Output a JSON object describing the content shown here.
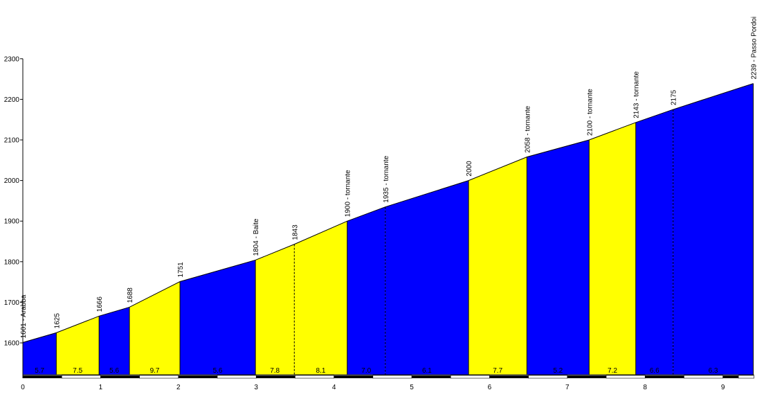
{
  "chart_data": {
    "type": "area",
    "title": "",
    "xlabel": "",
    "ylabel": "",
    "xlim": [
      0,
      9.4
    ],
    "ylim": [
      1515,
      2300
    ],
    "x_ticks": [
      0,
      1,
      2,
      3,
      4,
      5,
      6,
      7,
      8,
      9
    ],
    "y_ticks": [
      1600,
      1700,
      1800,
      1900,
      2000,
      2100,
      2200,
      2300
    ],
    "segment_colors": [
      "#0000ff",
      "#ffff00"
    ],
    "profile": [
      {
        "x": 0.0,
        "elev": 1601,
        "label": "1601 - Arabba"
      },
      {
        "x": 0.43,
        "elev": 1625,
        "label": "1625"
      },
      {
        "x": 0.98,
        "elev": 1666,
        "label": "1666"
      },
      {
        "x": 1.37,
        "elev": 1688,
        "label": "1688"
      },
      {
        "x": 2.02,
        "elev": 1751,
        "label": "1751"
      },
      {
        "x": 2.99,
        "elev": 1804,
        "label": "1804 - Baite"
      },
      {
        "x": 3.49,
        "elev": 1843,
        "label": "1843"
      },
      {
        "x": 4.17,
        "elev": 1900,
        "label": "1900 - tornante"
      },
      {
        "x": 4.66,
        "elev": 1935,
        "label": "1935 - tornante"
      },
      {
        "x": 5.73,
        "elev": 2000,
        "label": "2000"
      },
      {
        "x": 6.48,
        "elev": 2058,
        "label": "2058 - tornante"
      },
      {
        "x": 7.28,
        "elev": 2100,
        "label": "2100 - tornante"
      },
      {
        "x": 7.88,
        "elev": 2143,
        "label": "2143 - tornante"
      },
      {
        "x": 8.36,
        "elev": 2175,
        "label": "2175"
      },
      {
        "x": 9.39,
        "elev": 2239,
        "label": "2239 - Passo Pordoi"
      }
    ],
    "segments": [
      {
        "start": 0.0,
        "end": 0.43,
        "color": "#0000ff",
        "gradient": "5.7"
      },
      {
        "start": 0.43,
        "end": 0.98,
        "color": "#ffff00",
        "gradient": "7.5"
      },
      {
        "start": 0.98,
        "end": 1.37,
        "color": "#0000ff",
        "gradient": "5.6"
      },
      {
        "start": 1.37,
        "end": 2.02,
        "color": "#ffff00",
        "gradient": "9.7"
      },
      {
        "start": 2.02,
        "end": 2.99,
        "color": "#0000ff",
        "gradient": "5.6"
      },
      {
        "start": 2.99,
        "end": 3.49,
        "color": "#ffff00",
        "gradient": "7.8"
      },
      {
        "start": 3.49,
        "end": 4.17,
        "color": "#ffff00",
        "gradient": "8.1"
      },
      {
        "start": 4.17,
        "end": 4.66,
        "color": "#0000ff",
        "gradient": "7.0"
      },
      {
        "start": 4.66,
        "end": 5.73,
        "color": "#0000ff",
        "gradient": "6.1"
      },
      {
        "start": 5.73,
        "end": 6.48,
        "color": "#ffff00",
        "gradient": "7.7"
      },
      {
        "start": 6.48,
        "end": 7.28,
        "color": "#0000ff",
        "gradient": "5.2"
      },
      {
        "start": 7.28,
        "end": 7.88,
        "color": "#ffff00",
        "gradient": "7.2"
      },
      {
        "start": 7.88,
        "end": 8.36,
        "color": "#0000ff",
        "gradient": "6.6"
      },
      {
        "start": 8.36,
        "end": 9.39,
        "color": "#0000ff",
        "gradient": "6.3"
      }
    ],
    "dashed_boundaries": [
      3.49,
      4.66,
      8.36
    ],
    "grid": false,
    "legend": "none"
  }
}
